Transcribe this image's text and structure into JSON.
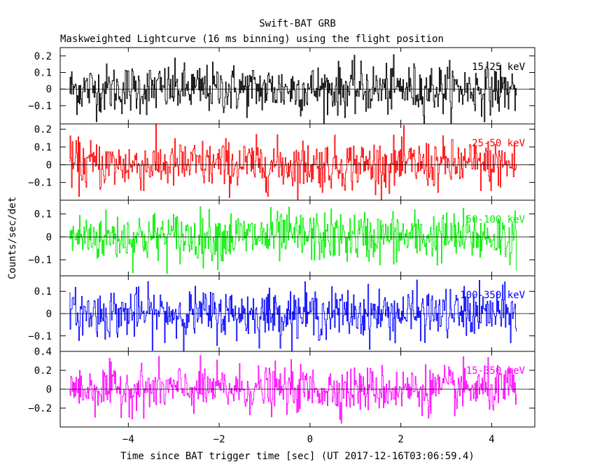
{
  "chart_data": {
    "type": "line",
    "title": "Swift-BAT GRB",
    "subtitle": "Maskweighted Lightcurve (16 ms binning) using the flight position",
    "xlabel": "Time since BAT trigger time [sec] (UT 2017-12-16T03:06:59.4)",
    "ylabel": "Counts/sec/det",
    "xlim": [
      -5.5,
      4.95
    ],
    "x_ticks": [
      -4,
      -2,
      0,
      2,
      4
    ],
    "x_tick_labels": [
      "−4",
      "−2",
      "0",
      "2",
      "4"
    ],
    "bin_width_sec": 0.016,
    "data_start": -5.3,
    "data_end": 4.55,
    "panels": [
      {
        "name": "15-25 keV",
        "color": "#000000",
        "ylim": [
          -0.21,
          0.25
        ],
        "y_ticks": [
          -0.1,
          0,
          0.1,
          0.2
        ],
        "y_tick_labels": [
          "−0.1",
          "0",
          "0.1",
          "0.2"
        ],
        "amplitude": 0.075
      },
      {
        "name": "25-50 keV",
        "color": "#ff0000",
        "ylim": [
          -0.2,
          0.23
        ],
        "y_ticks": [
          -0.1,
          0,
          0.1,
          0.2
        ],
        "y_tick_labels": [
          "−0.1",
          "0",
          "0.1",
          "0.2"
        ],
        "amplitude": 0.07
      },
      {
        "name": "50-100 keV",
        "color": "#00ee00",
        "ylim": [
          -0.17,
          0.16
        ],
        "y_ticks": [
          -0.1,
          0,
          0.1
        ],
        "y_tick_labels": [
          "−0.1",
          "0",
          "0.1"
        ],
        "amplitude": 0.055
      },
      {
        "name": "100-350 keV",
        "color": "#0000ff",
        "ylim": [
          -0.17,
          0.17
        ],
        "y_ticks": [
          -0.1,
          0,
          0.1
        ],
        "y_tick_labels": [
          "−0.1",
          "0",
          "0.1"
        ],
        "amplitude": 0.055
      },
      {
        "name": "15-350 keV",
        "color": "#ff00ff",
        "ylim": [
          -0.4,
          0.4
        ],
        "y_ticks": [
          -0.2,
          0,
          0.2,
          0.4
        ],
        "y_tick_labels": [
          "−0.2",
          "0",
          "0.2",
          "0.4"
        ],
        "amplitude": 0.12
      }
    ]
  }
}
